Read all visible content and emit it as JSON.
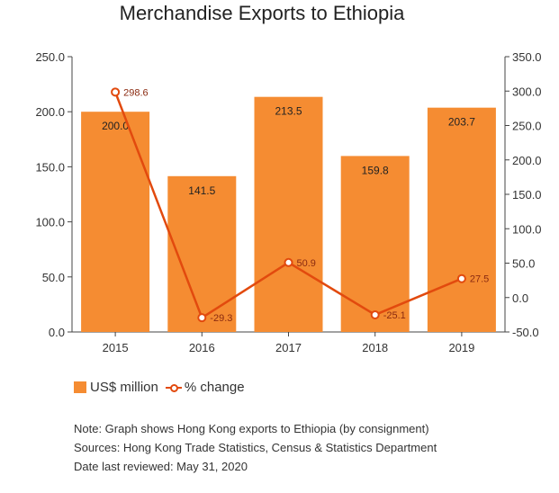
{
  "chart_data": {
    "type": "bar",
    "title": "Merchandise Exports to Ethiopia",
    "categories": [
      "2015",
      "2016",
      "2017",
      "2018",
      "2019"
    ],
    "series": [
      {
        "name": "US$ million",
        "type": "bar",
        "axis": "left",
        "values": [
          200.0,
          141.5,
          213.5,
          159.8,
          203.7
        ],
        "labels": [
          "200.0",
          "141.5",
          "213.5",
          "159.8",
          "203.7"
        ]
      },
      {
        "name": "% change",
        "type": "line",
        "axis": "right",
        "values": [
          298.6,
          -29.3,
          50.9,
          -25.1,
          27.5
        ],
        "labels": [
          "298.6",
          "-29.3",
          "50.9",
          "-25.1",
          "27.5"
        ]
      }
    ],
    "y_left": {
      "min": 0,
      "max": 250,
      "ticks": [
        "0.0",
        "50.0",
        "100.0",
        "150.0",
        "200.0",
        "250.0"
      ]
    },
    "y_right": {
      "min": -50,
      "max": 350,
      "ticks": [
        "-50.0",
        "0.0",
        "50.0",
        "100.0",
        "150.0",
        "200.0",
        "250.0",
        "300.0",
        "350.0"
      ]
    },
    "legend_position": "bottom-left",
    "grid": false,
    "colors": {
      "bar": "#f58c32",
      "line": "#e24a0e",
      "bar_label": "#222222",
      "line_label": "#8a2a10"
    }
  },
  "legend": {
    "bar_label": "US$ million",
    "line_label": "% change"
  },
  "notes": [
    "Note: Graph shows Hong Kong exports to Ethiopia (by consignment)",
    "Sources: Hong Kong Trade Statistics, Census & Statistics Department",
    "Date last reviewed: May 31, 2020"
  ]
}
